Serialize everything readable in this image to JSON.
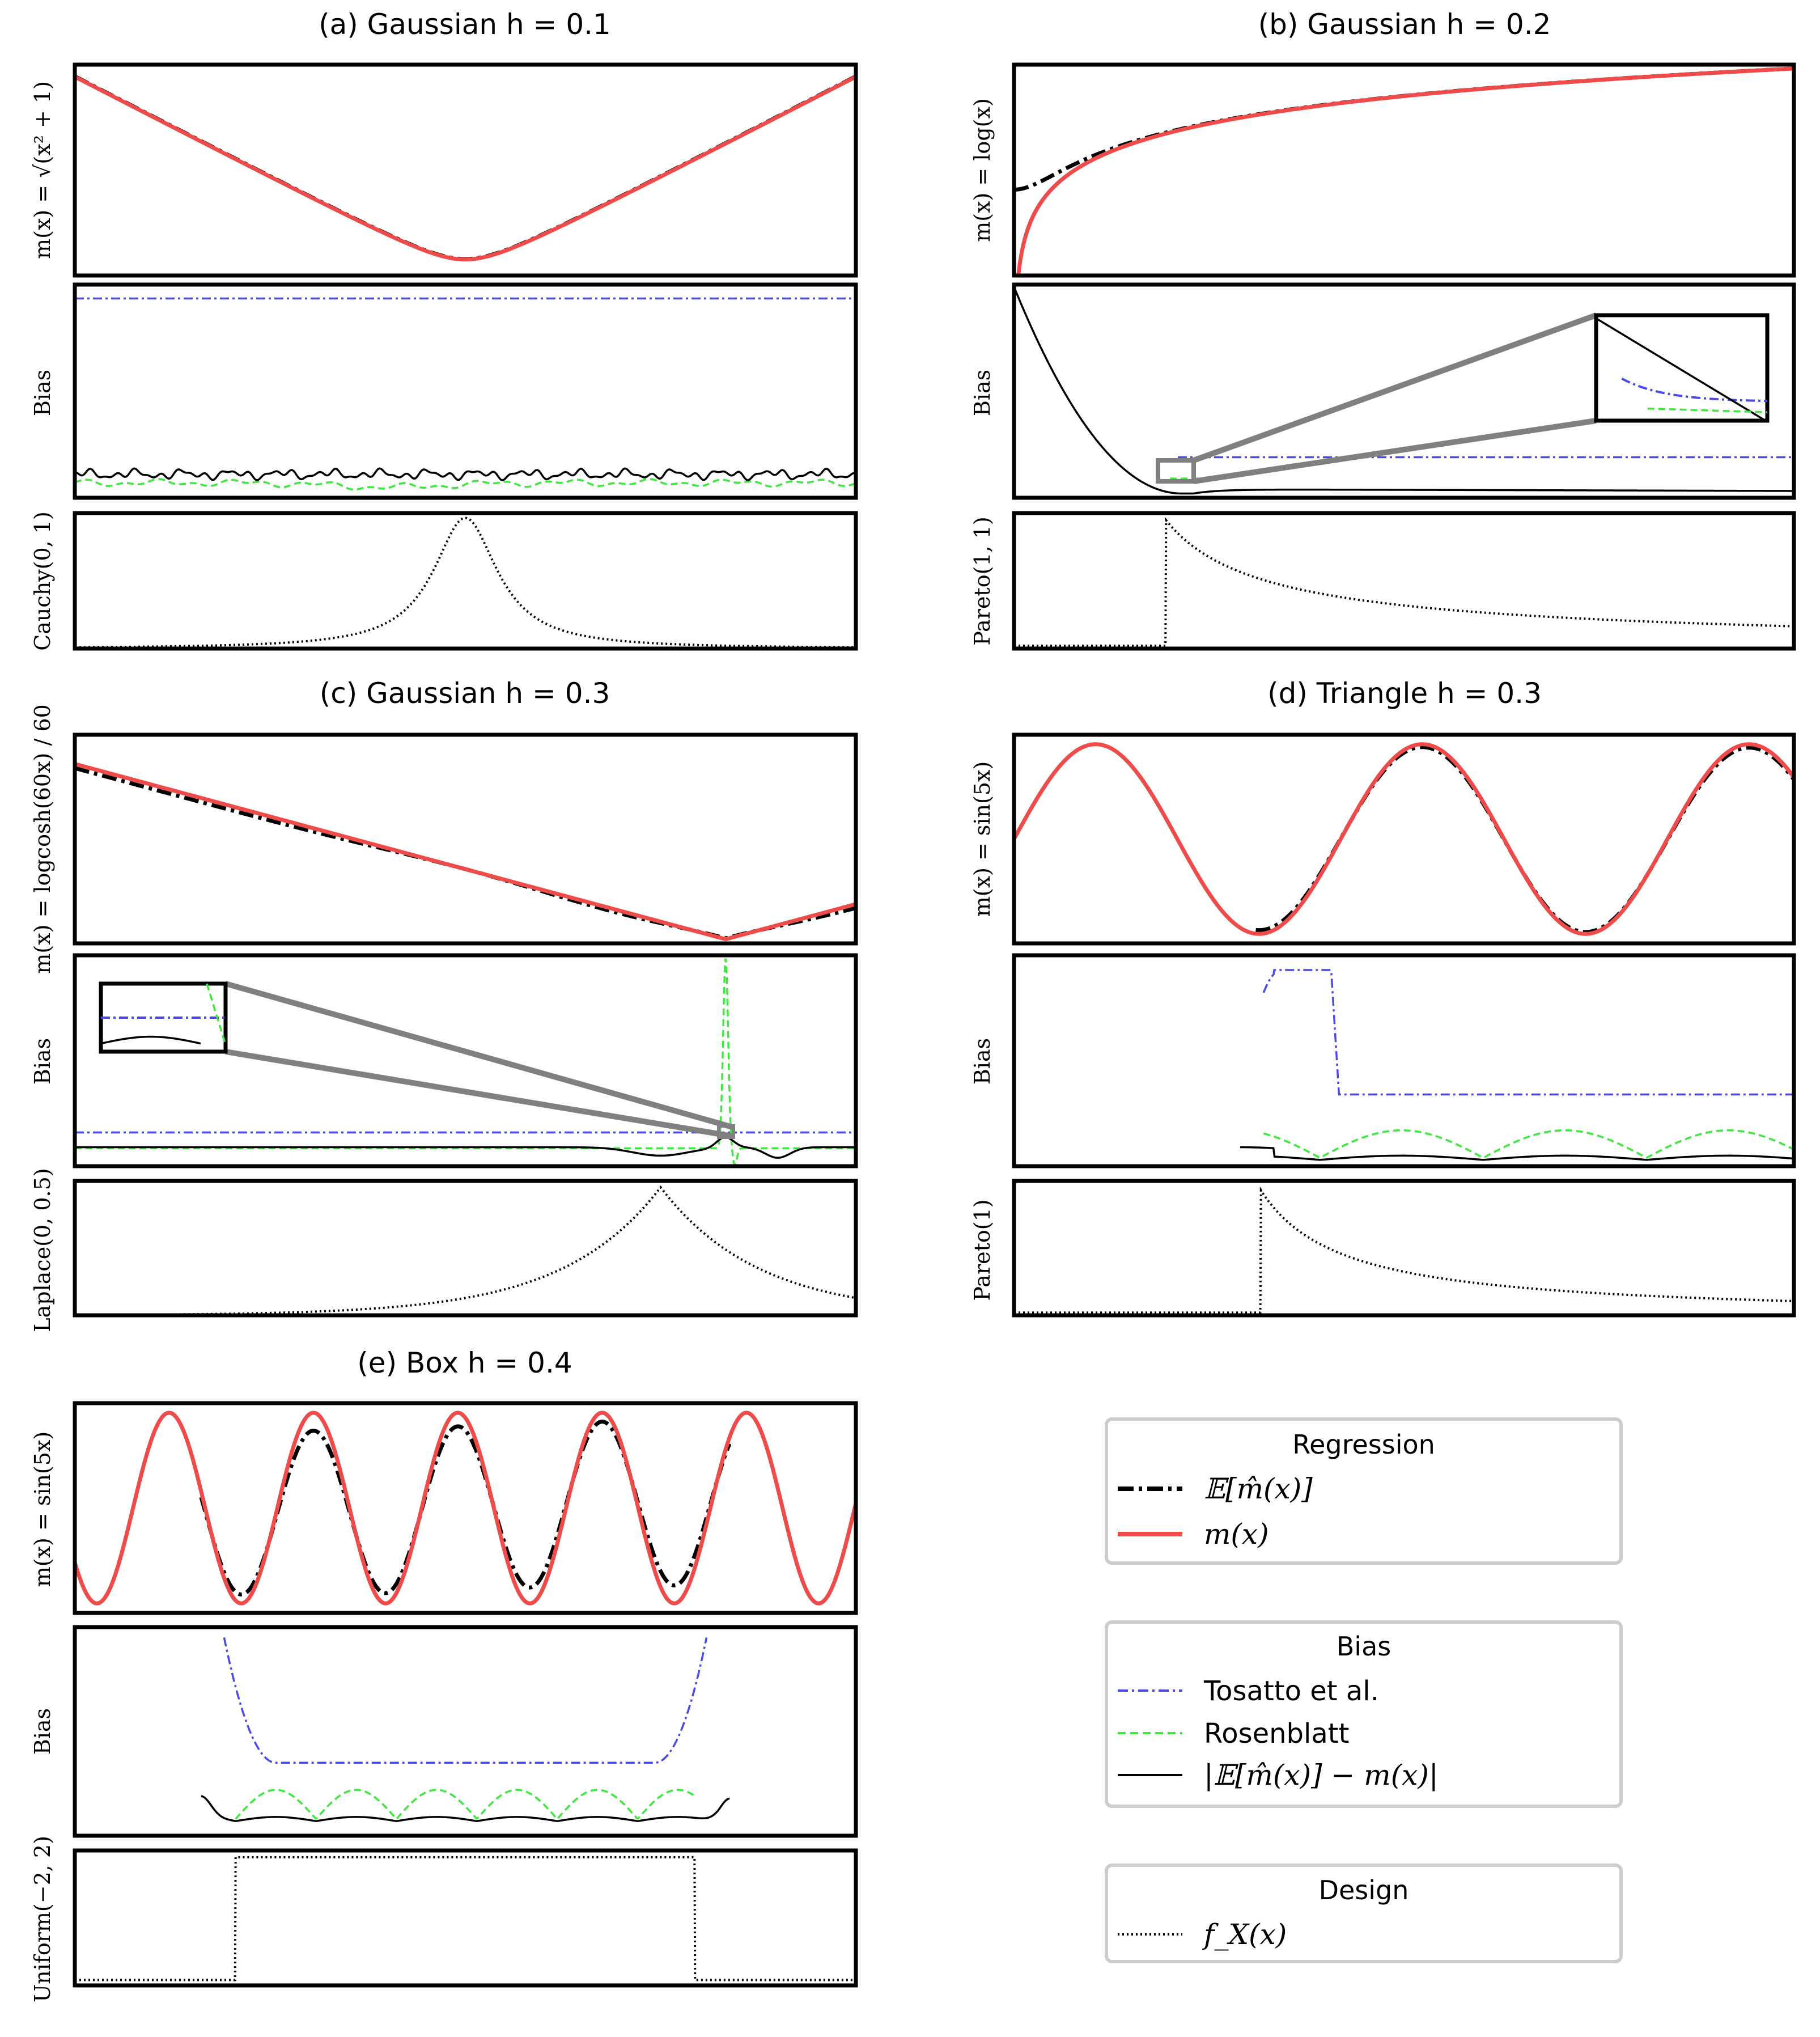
{
  "colors": {
    "regression": "#000000",
    "truth": "#ef4b4b",
    "tosatto": "#4a4ae8",
    "rosenblatt": "#3ee83e",
    "abs_bias": "#000000",
    "design": "#000000",
    "inset": "#808080"
  },
  "chart_data": [
    {
      "type": "line",
      "panel": "a",
      "title": "(a) Gaussian h = 0.1",
      "rows": [
        {
          "ylabel": "m(x) = √(x² + 1)",
          "series": [
            "E[m̂(x)]",
            "m(x)"
          ]
        },
        {
          "ylabel": "Bias",
          "series": [
            "Tosatto et al.",
            "Rosenblatt",
            "|E[m̂(x)] − m(x)|"
          ]
        },
        {
          "ylabel": "Cauchy(0, 1)",
          "series": [
            "f_X(x)"
          ]
        }
      ],
      "function": "sqrt(x^2+1)",
      "design": "Cauchy(0, 1)",
      "grid": false
    },
    {
      "type": "line",
      "panel": "b",
      "title": "(b) Gaussian h = 0.2",
      "rows": [
        {
          "ylabel": "m(x) = log(x)",
          "series": [
            "E[m̂(x)]",
            "m(x)"
          ]
        },
        {
          "ylabel": "Bias",
          "series": [
            "Tosatto et al.",
            "Rosenblatt",
            "|E[m̂(x)] − m(x)|"
          ],
          "inset": true
        },
        {
          "ylabel": "Pareto(1, 1)",
          "series": [
            "f_X(x)"
          ]
        }
      ],
      "function": "log(x)",
      "design": "Pareto(1, 1)",
      "grid": false
    },
    {
      "type": "line",
      "panel": "c",
      "title": "(c) Gaussian h = 0.3",
      "rows": [
        {
          "ylabel": "m(x) = logcosh(60x) / 60",
          "series": [
            "E[m̂(x)]",
            "m(x)"
          ]
        },
        {
          "ylabel": "Bias",
          "series": [
            "Tosatto et al.",
            "Rosenblatt",
            "|E[m̂(x)] − m(x)|"
          ],
          "inset": true
        },
        {
          "ylabel": "Laplace(0, 0.5)",
          "series": [
            "f_X(x)"
          ]
        }
      ],
      "function": "logcosh(60x)/60",
      "design": "Laplace(0, 0.5)",
      "grid": false
    },
    {
      "type": "line",
      "panel": "d",
      "title": "(d) Triangle h = 0.3",
      "rows": [
        {
          "ylabel": "m(x) = sin(5x)",
          "series": [
            "E[m̂(x)]",
            "m(x)"
          ]
        },
        {
          "ylabel": "Bias",
          "series": [
            "Tosatto et al.",
            "Rosenblatt",
            "|E[m̂(x)] − m(x)|"
          ]
        },
        {
          "ylabel": "Pareto(1)",
          "series": [
            "f_X(x)"
          ]
        }
      ],
      "function": "sin(5x)",
      "design": "Pareto(1)",
      "grid": false
    },
    {
      "type": "line",
      "panel": "e",
      "title": "(e) Box h = 0.4",
      "rows": [
        {
          "ylabel": "m(x) = sin(5x)",
          "series": [
            "E[m̂(x)]",
            "m(x)"
          ]
        },
        {
          "ylabel": "Bias",
          "series": [
            "Tosatto et al.",
            "Rosenblatt",
            "|E[m̂(x)] − m(x)|"
          ]
        },
        {
          "ylabel": "Uniform(−2, 2)",
          "series": [
            "f_X(x)"
          ]
        }
      ],
      "function": "sin(5x)",
      "design": "Uniform(−2, 2)",
      "grid": false
    }
  ],
  "legend": {
    "regression": {
      "title": "Regression",
      "items": [
        "𝔼[m̂(x)]",
        "m(x)"
      ]
    },
    "bias": {
      "title": "Bias",
      "items": [
        "Tosatto et al.",
        "Rosenblatt",
        "|𝔼[m̂(x)] − m(x)|"
      ]
    },
    "design": {
      "title": "Design",
      "items": [
        "f_X(x)"
      ]
    }
  }
}
